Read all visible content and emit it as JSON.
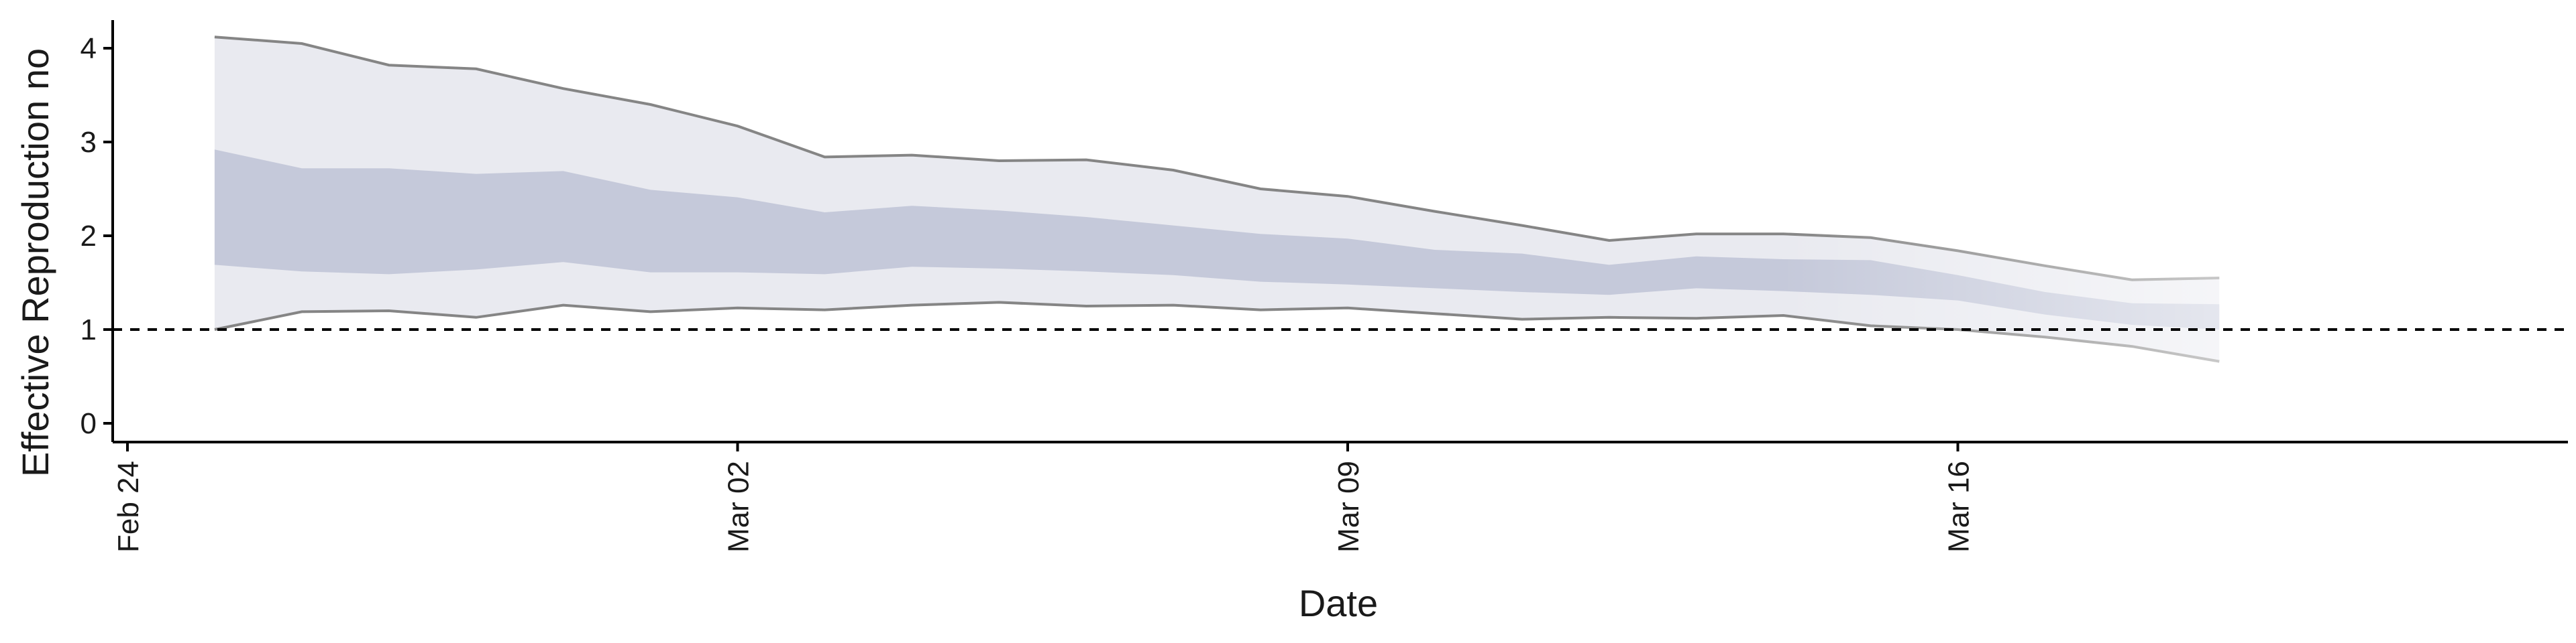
{
  "chart_data": {
    "type": "area",
    "title": "",
    "xlabel": "Date",
    "ylabel": "Effective Reproduction no",
    "x_dates": [
      "2020-02-25",
      "2020-02-26",
      "2020-02-27",
      "2020-02-28",
      "2020-02-29",
      "2020-03-01",
      "2020-03-02",
      "2020-03-03",
      "2020-03-04",
      "2020-03-05",
      "2020-03-06",
      "2020-03-07",
      "2020-03-08",
      "2020-03-09",
      "2020-03-10",
      "2020-03-11",
      "2020-03-12",
      "2020-03-13",
      "2020-03-14",
      "2020-03-15",
      "2020-03-16",
      "2020-03-17",
      "2020-03-18",
      "2020-03-19"
    ],
    "x_ticks": [
      {
        "date": "2020-02-24",
        "label": "Feb 24"
      },
      {
        "date": "2020-03-02",
        "label": "Mar 02"
      },
      {
        "date": "2020-03-09",
        "label": "Mar 09"
      },
      {
        "date": "2020-03-16",
        "label": "Mar 16"
      }
    ],
    "xlim": [
      "2020-02-24",
      "2020-03-23"
    ],
    "y_ticks": [
      0,
      1,
      2,
      3,
      4
    ],
    "ylim": [
      -0.2,
      4.3
    ],
    "series": [
      {
        "kind": "outer-band",
        "upper": [
          4.12,
          4.05,
          3.82,
          3.78,
          3.57,
          3.4,
          3.17,
          2.84,
          2.86,
          2.8,
          2.81,
          2.7,
          2.5,
          2.42,
          2.26,
          2.11,
          1.95,
          2.02,
          2.02,
          1.98,
          1.84,
          1.68,
          1.53,
          1.55
        ],
        "lower": [
          1.0,
          1.19,
          1.2,
          1.13,
          1.26,
          1.19,
          1.23,
          1.21,
          1.26,
          1.29,
          1.25,
          1.26,
          1.21,
          1.23,
          1.17,
          1.11,
          1.13,
          1.12,
          1.15,
          1.04,
          1.0,
          0.92,
          0.82,
          0.66
        ]
      },
      {
        "kind": "inner-band",
        "upper": [
          2.92,
          2.72,
          2.72,
          2.66,
          2.69,
          2.49,
          2.41,
          2.25,
          2.32,
          2.27,
          2.2,
          2.11,
          2.02,
          1.97,
          1.85,
          1.81,
          1.69,
          1.78,
          1.75,
          1.74,
          1.58,
          1.4,
          1.28,
          1.27
        ],
        "lower": [
          1.69,
          1.62,
          1.59,
          1.64,
          1.72,
          1.61,
          1.61,
          1.59,
          1.67,
          1.65,
          1.62,
          1.58,
          1.51,
          1.48,
          1.44,
          1.4,
          1.37,
          1.44,
          1.41,
          1.37,
          1.31,
          1.16,
          1.05,
          1.0
        ]
      }
    ],
    "reference_line": {
      "y": 1,
      "style": "dashed"
    },
    "grid": false,
    "legend": "none",
    "colors": {
      "outer_band": "#e9eaf0",
      "inner_band": "#c5c9da",
      "band_edge": "#858585",
      "reference": "#000000",
      "axis": "#000000",
      "text": "#1a1a1a"
    }
  }
}
